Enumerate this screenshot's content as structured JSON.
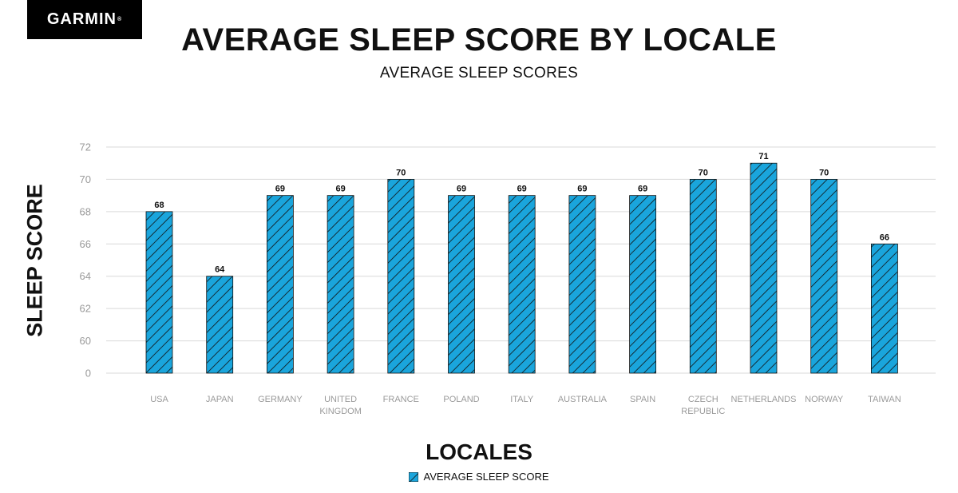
{
  "brand": {
    "logo_text": "GARMIN",
    "logo_mark": "®"
  },
  "chart_data": {
    "type": "bar",
    "title": "AVERAGE SLEEP SCORE BY LOCALE",
    "subtitle": "AVERAGE SLEEP SCORES",
    "xlabel": "LOCALES",
    "ylabel": "SLEEP SCORE",
    "categories": [
      "USA",
      "JAPAN",
      "GERMANY",
      "UNITED KINGDOM",
      "FRANCE",
      "POLAND",
      "ITALY",
      "AUSTRALIA",
      "SPAIN",
      "CZECH REPUBLIC",
      "NETHERLANDS",
      "NORWAY",
      "TAIWAN"
    ],
    "category_label_lines": [
      [
        "USA"
      ],
      [
        "JAPAN"
      ],
      [
        "GERMANY"
      ],
      [
        "UNITED",
        "KINGDOM"
      ],
      [
        "FRANCE"
      ],
      [
        "POLAND"
      ],
      [
        "ITALY"
      ],
      [
        "AUSTRALIA"
      ],
      [
        "SPAIN"
      ],
      [
        "CZECH",
        "REPUBLIC"
      ],
      [
        "NETHERLANDS"
      ],
      [
        "NORWAY"
      ],
      [
        "TAIWAN"
      ]
    ],
    "series": [
      {
        "name": "AVERAGE SLEEP SCORE",
        "values": [
          68,
          64,
          69,
          69,
          70,
          69,
          69,
          69,
          69,
          70,
          71,
          70,
          66
        ]
      }
    ],
    "y_ticks": [
      0,
      60,
      62,
      64,
      66,
      68,
      70,
      72
    ],
    "y_axis_break": "0 shown below 60 (broken axis)",
    "ylim": [
      58,
      72
    ],
    "grid": true,
    "legend_position": "bottom-center",
    "colors": {
      "bar_fill": "#1aa5dc",
      "bar_hatch": "#111111",
      "grid": "#d9d9d9"
    }
  }
}
